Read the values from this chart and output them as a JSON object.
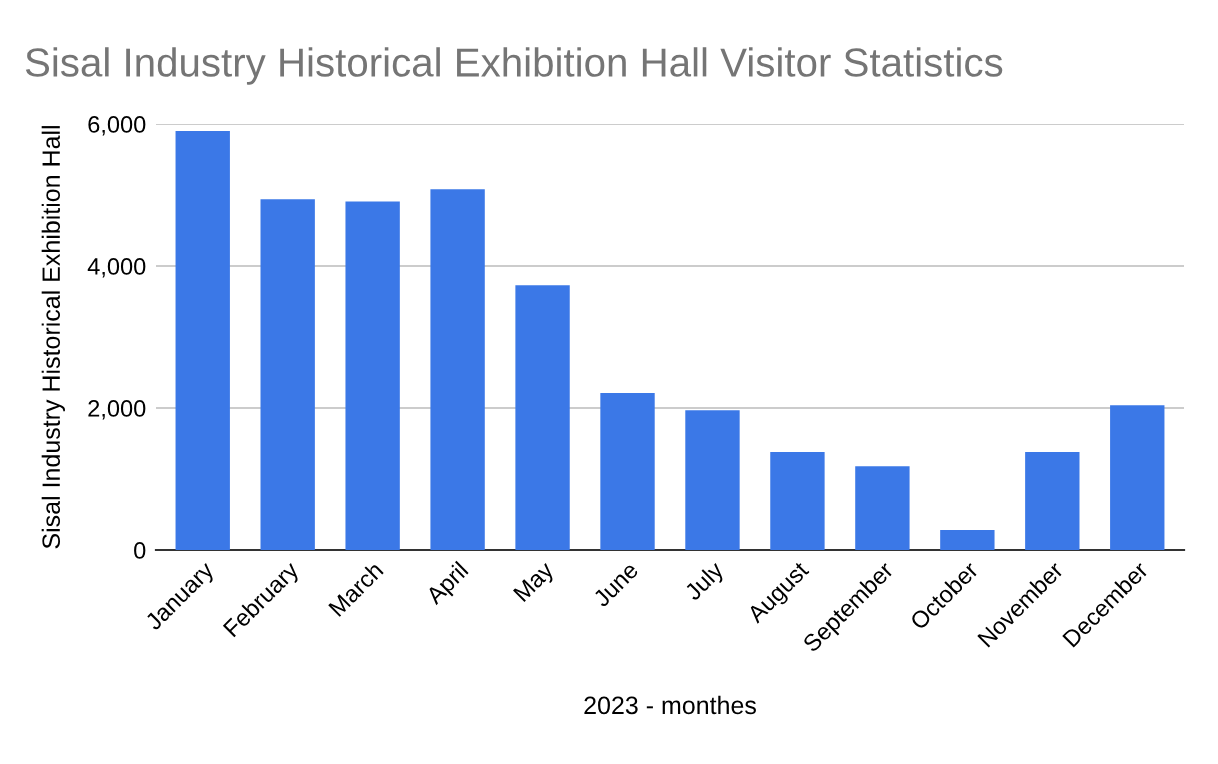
{
  "chart_data": {
    "type": "bar",
    "title": "Sisal Industry Historical Exhibition Hall Visitor Statistics",
    "xlabel": "2023 - monthes",
    "ylabel": "Sisal Industry Historical Exhibition Hall",
    "categories": [
      "January",
      "February",
      "March",
      "April",
      "May",
      "June",
      "July",
      "August",
      "September",
      "October",
      "November",
      "December"
    ],
    "values": [
      5900,
      4940,
      4910,
      5080,
      3730,
      2210,
      1970,
      1380,
      1180,
      280,
      1380,
      2040
    ],
    "color": "#3b78e7",
    "ylim": [
      0,
      6000
    ],
    "yticks": [
      {
        "value": 0,
        "label": "0"
      },
      {
        "value": 2000,
        "label": "2,000"
      },
      {
        "value": 4000,
        "label": "4,000"
      },
      {
        "value": 6000,
        "label": "6,000"
      }
    ],
    "grid": "y"
  }
}
